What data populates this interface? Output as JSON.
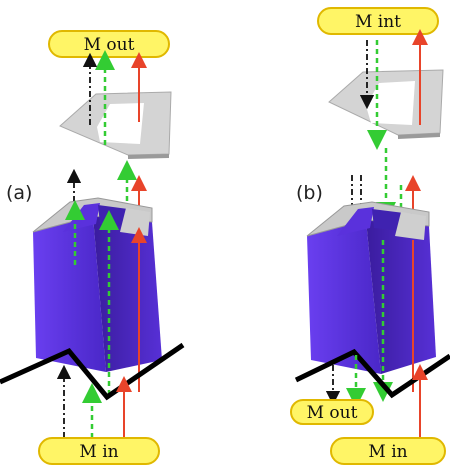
{
  "figure": {
    "panel_a": {
      "label": "(a)",
      "top_port": "M out",
      "bottom_port": "M in"
    },
    "panel_b": {
      "label": "(b)",
      "top_port": "M int",
      "bottom_left_port": "M out",
      "bottom_right_port": "M in"
    }
  },
  "colors": {
    "prism_face": "#5a31dc",
    "prism_side": "#3d1fa6",
    "plate": "#cfcfcf",
    "pill_fill": "#fff566",
    "pill_border": "#e0b800",
    "arrow_red": "#e8442a",
    "arrow_green": "#33cc33",
    "arrow_black": "#111111",
    "ground": "#000000"
  }
}
